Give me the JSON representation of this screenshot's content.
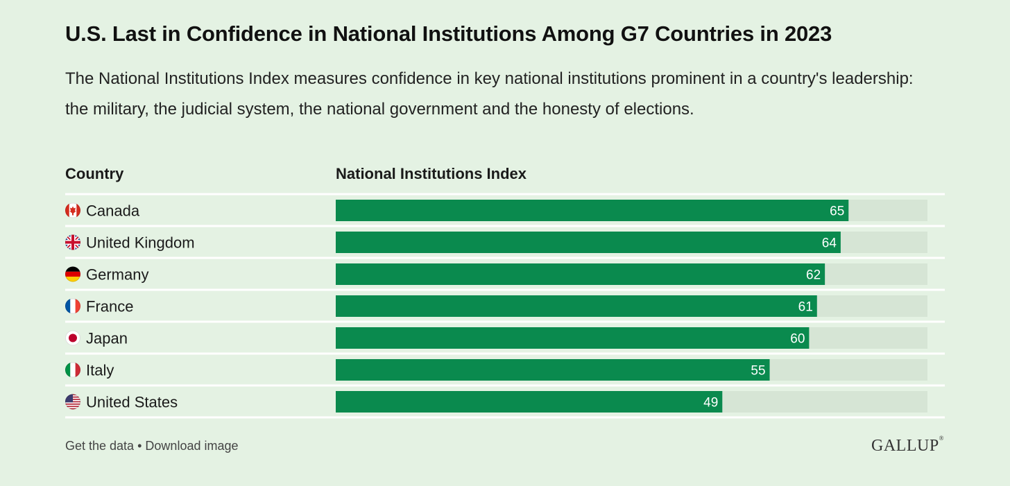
{
  "title": "U.S. Last in Confidence in National Institutions Among G7 Countries in 2023",
  "subtitle": "The National Institutions Index measures confidence in key national institutions prominent in a country's leadership: the military, the judicial system, the national government and the honesty of elections.",
  "colors": {
    "bar": "#0a8a4e",
    "track": "#d6e5d5",
    "divider": "#ffffff",
    "bar_label": "#ffffff"
  },
  "chart_data": {
    "type": "bar",
    "orientation": "horizontal",
    "title": "U.S. Last in Confidence in National Institutions Among G7 Countries in 2023",
    "xlabel": "National Institutions Index",
    "ylabel": "Country",
    "xlim": [
      0,
      75
    ],
    "grid": false,
    "legend": "none",
    "categories": [
      "Canada",
      "United Kingdom",
      "Germany",
      "France",
      "Japan",
      "Italy",
      "United States"
    ],
    "flags": [
      "canada-flag-icon",
      "uk-flag-icon",
      "germany-flag-icon",
      "france-flag-icon",
      "japan-flag-icon",
      "italy-flag-icon",
      "us-flag-icon"
    ],
    "values": [
      65,
      64,
      62,
      61,
      60,
      55,
      49
    ]
  },
  "footer": {
    "get_data": "Get the data",
    "separator": "•",
    "download": "Download image"
  },
  "logo": {
    "text": "GALLUP",
    "mark": "®"
  }
}
